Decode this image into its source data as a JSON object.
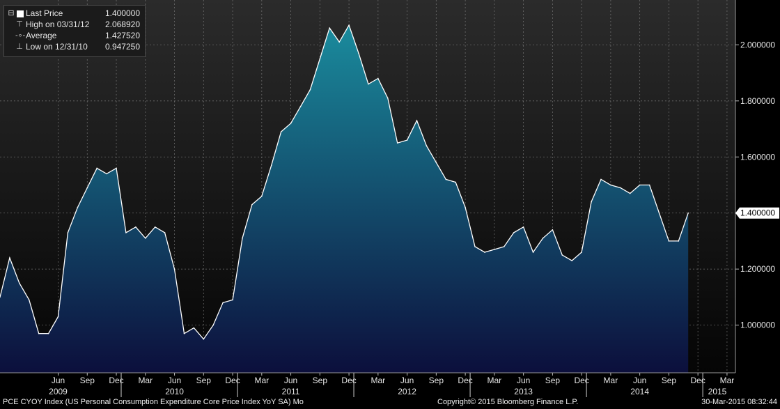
{
  "chart_data": {
    "type": "area",
    "x_start": "2008-12",
    "x_end": "2015-02",
    "values": [
      1.1,
      1.24,
      1.15,
      1.09,
      0.97,
      0.97,
      1.03,
      1.33,
      1.42,
      1.49,
      1.56,
      1.54,
      1.56,
      1.33,
      1.35,
      1.31,
      1.35,
      1.33,
      1.2,
      0.97,
      0.99,
      0.95,
      1.0,
      1.08,
      1.09,
      1.31,
      1.43,
      1.46,
      1.57,
      1.69,
      1.72,
      1.78,
      1.84,
      1.95,
      2.06,
      2.01,
      2.07,
      1.97,
      1.86,
      1.88,
      1.81,
      1.65,
      1.66,
      1.73,
      1.64,
      1.58,
      1.52,
      1.51,
      1.42,
      1.28,
      1.26,
      1.27,
      1.28,
      1.33,
      1.35,
      1.26,
      1.31,
      1.34,
      1.25,
      1.23,
      1.26,
      1.44,
      1.52,
      1.5,
      1.49,
      1.47,
      1.5,
      1.5,
      1.4,
      1.3,
      1.3,
      1.4
    ],
    "ylim": [
      0.83,
      2.16
    ],
    "yticks": [
      {
        "value": 1.0,
        "label": "1.000000"
      },
      {
        "value": 1.2,
        "label": "1.200000"
      },
      {
        "value": 1.4,
        "label": "1.400000"
      },
      {
        "value": 1.6,
        "label": "1.600000"
      },
      {
        "value": 1.8,
        "label": "1.800000"
      },
      {
        "value": 2.0,
        "label": "2.000000"
      }
    ],
    "xticks": [
      {
        "date": "2009-06",
        "label": "Jun"
      },
      {
        "date": "2009-09",
        "label": "Sep"
      },
      {
        "date": "2009-12",
        "label": "Dec"
      },
      {
        "date": "2010-03",
        "label": "Mar"
      },
      {
        "date": "2010-06",
        "label": "Jun"
      },
      {
        "date": "2010-09",
        "label": "Sep"
      },
      {
        "date": "2010-12",
        "label": "Dec"
      },
      {
        "date": "2011-03",
        "label": "Mar"
      },
      {
        "date": "2011-06",
        "label": "Jun"
      },
      {
        "date": "2011-09",
        "label": "Sep"
      },
      {
        "date": "2011-12",
        "label": "Dec"
      },
      {
        "date": "2012-03",
        "label": "Mar"
      },
      {
        "date": "2012-06",
        "label": "Jun"
      },
      {
        "date": "2012-09",
        "label": "Sep"
      },
      {
        "date": "2012-12",
        "label": "Dec"
      },
      {
        "date": "2013-03",
        "label": "Mar"
      },
      {
        "date": "2013-06",
        "label": "Jun"
      },
      {
        "date": "2013-09",
        "label": "Sep"
      },
      {
        "date": "2013-12",
        "label": "Dec"
      },
      {
        "date": "2014-03",
        "label": "Mar"
      },
      {
        "date": "2014-06",
        "label": "Jun"
      },
      {
        "date": "2014-09",
        "label": "Sep"
      },
      {
        "date": "2014-12",
        "label": "Dec"
      },
      {
        "date": "2015-03",
        "label": "Mar"
      }
    ],
    "year_labels": [
      {
        "date": "2009-06",
        "label": "2009"
      },
      {
        "date": "2010-06",
        "label": "2010"
      },
      {
        "date": "2011-06",
        "label": "2011"
      },
      {
        "date": "2012-06",
        "label": "2012"
      },
      {
        "date": "2013-06",
        "label": "2013"
      },
      {
        "date": "2014-06",
        "label": "2014"
      },
      {
        "date": "2015-02",
        "label": "2015"
      }
    ],
    "year_separators": [
      "2009-12",
      "2010-12",
      "2011-12",
      "2012-12",
      "2013-12",
      "2014-12"
    ],
    "last_value_label": "1.400000",
    "grid": true,
    "colors": {
      "area_top": "#1a8a9c",
      "area_bottom": "#0c0f3c",
      "line": "#ffffff",
      "grid": "#8a8a8a"
    }
  },
  "legend": {
    "rows": [
      {
        "symbol": "square",
        "label": "Last Price",
        "value": "1.400000"
      },
      {
        "symbol": "high",
        "label": "High on 03/31/12",
        "value": "2.068920"
      },
      {
        "symbol": "avg",
        "label": "Average",
        "value": "1.427520"
      },
      {
        "symbol": "low",
        "label": "Low on 12/31/10",
        "value": "0.947250"
      }
    ]
  },
  "footer": {
    "ticker": "PCE CYOY Index  (US Personal Consumption Expenditure Core Price Index YoY SA)  Mo",
    "copyright": "Copyright© 2015 Bloomberg Finance L.P.",
    "timestamp": "30-Mar-2015 08:32:44"
  }
}
